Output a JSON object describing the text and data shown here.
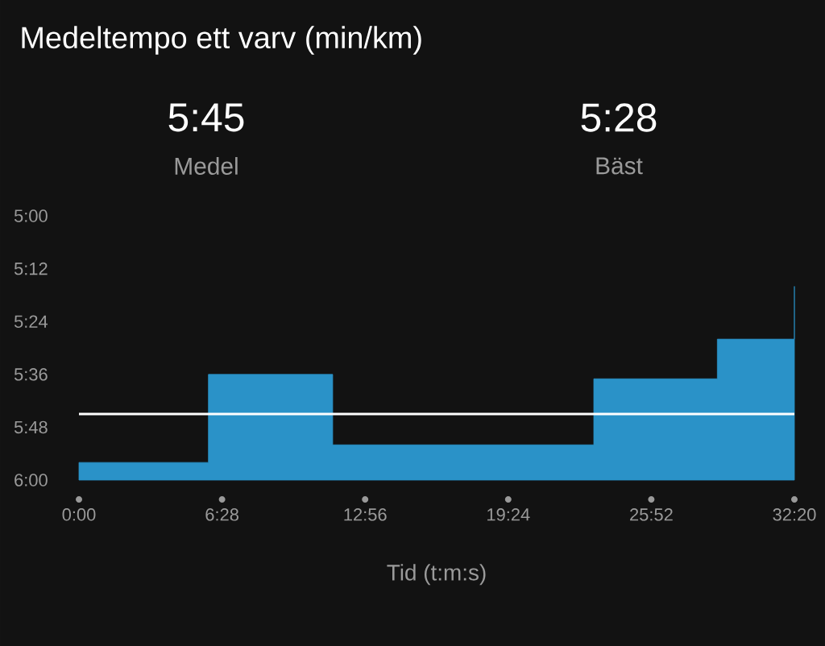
{
  "chart_data": {
    "type": "area",
    "title": "Medeltempo ett varv (min/km)",
    "xlabel": "Tid (t:m:s)",
    "annotations": [
      "5:45",
      "Medel",
      "5:28",
      "Bäst"
    ],
    "x": [
      0,
      0,
      351,
      351,
      688,
      688,
      1396,
      1396,
      1731,
      1731,
      1940,
      1940,
      1940
    ],
    "series": [
      {
        "color": "#2a92c8",
        "values": [
          360,
          356,
          356,
          336,
          336,
          352,
          352,
          337,
          337,
          328,
          328,
          316,
          360
        ]
      }
    ],
    "xlim": [
      0,
      1940
    ],
    "xticks": [
      {
        "value": 0,
        "label": "0:00"
      },
      {
        "value": 388,
        "label": "6:28"
      },
      {
        "value": 776,
        "label": "12:56"
      },
      {
        "value": 1164,
        "label": "19:24"
      },
      {
        "value": 1552,
        "label": "25:52"
      },
      {
        "value": 1940,
        "label": "32:20"
      }
    ],
    "ylim": [
      360,
      300
    ],
    "yticks": [
      {
        "value": 300,
        "label": "5:00"
      },
      {
        "value": 312,
        "label": "5:12"
      },
      {
        "value": 324,
        "label": "5:24"
      },
      {
        "value": 336,
        "label": "5:36"
      },
      {
        "value": 348,
        "label": "5:48"
      },
      {
        "value": 360,
        "label": "6:00"
      }
    ],
    "ref_lines": [
      {
        "axis": "y",
        "value": 345,
        "color": "#ffffff"
      }
    ]
  }
}
